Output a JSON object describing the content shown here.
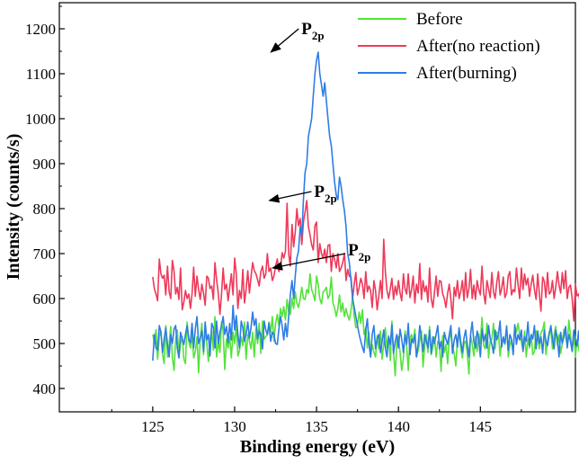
{
  "chart_data": {
    "type": "line",
    "title": "",
    "xlabel": "Binding energy (eV)",
    "ylabel": "Intensity (counts/s)",
    "xlim": [
      119.3,
      150.8
    ],
    "ylim": [
      348,
      1258
    ],
    "x_ticks": [
      125,
      130,
      135,
      140,
      145
    ],
    "y_ticks": [
      400,
      500,
      600,
      700,
      800,
      900,
      1000,
      1100,
      1200
    ],
    "x_range": [
      125,
      145
    ],
    "x_step": 0.1,
    "legend_position": "top-right",
    "series": [
      {
        "name": "Before",
        "color": "#55e23c",
        "values": [
          520,
          502,
          531,
          465,
          516,
          528,
          475,
          455,
          540,
          470,
          498,
          538,
          470,
          440,
          510,
          530,
          468,
          500,
          515,
          465,
          455,
          548,
          505,
          490,
          520,
          468,
          482,
          515,
          435,
          508,
          545,
          475,
          532,
          500,
          460,
          510,
          528,
          485,
          560,
          470,
          505,
          480,
          548,
          528,
          442,
          510,
          490,
          515,
          468,
          525,
          500,
          540,
          472,
          485,
          515,
          495,
          548,
          465,
          520,
          505,
          488,
          525,
          470,
          535,
          500,
          545,
          478,
          550,
          510,
          515,
          520,
          548,
          525,
          560,
          505,
          545,
          565,
          540,
          578,
          560,
          582,
          552,
          598,
          570,
          565,
          600,
          578,
          615,
          590,
          580,
          600,
          625,
          600,
          598,
          620,
          612,
          655,
          620,
          610,
          595,
          650,
          632,
          600,
          588,
          615,
          618,
          625,
          600,
          608,
          648,
          590,
          580,
          560,
          578,
          608,
          570,
          590,
          560,
          578,
          562,
          552,
          575,
          605,
          560,
          535,
          540,
          570,
          545,
          575,
          520,
          535,
          490,
          525,
          470,
          498,
          480,
          470,
          518,
          488,
          528,
          465,
          500,
          535,
          490,
          518,
          462,
          550,
          480,
          428,
          505,
          515,
          480,
          440,
          468,
          528,
          495,
          440,
          512,
          520,
          500,
          532,
          470,
          485,
          505,
          528,
          448,
          495,
          520,
          480,
          538,
          475,
          492,
          515,
          470,
          505,
          498,
          438,
          518,
          480,
          498,
          455,
          510,
          525,
          492,
          478,
          450,
          510,
          528,
          490,
          468,
          500,
          505,
          478,
          432,
          518,
          500,
          472,
          515,
          482,
          522,
          500,
          558,
          495,
          488,
          545,
          468,
          505,
          510,
          545,
          488,
          525,
          525,
          472,
          505,
          510,
          498,
          540,
          470,
          495,
          508,
          480,
          540,
          525,
          545,
          520,
          505,
          485,
          528,
          470,
          510,
          490,
          520,
          475,
          482,
          528,
          512,
          488,
          525,
          530,
          548,
          475,
          505,
          525,
          530,
          488,
          520,
          538,
          495,
          520,
          478,
          500,
          532,
          515,
          495,
          552,
          518,
          485,
          525,
          470,
          508,
          488,
          475,
          525,
          500,
          455,
          498,
          510,
          490,
          505,
          495,
          500,
          550,
          488,
          505,
          520,
          470,
          530,
          512,
          480,
          498,
          535,
          500,
          508,
          518,
          495,
          492,
          480,
          545,
          498,
          488
        ]
      },
      {
        "name": "After(no reaction)",
        "color": "#ee3a5a",
        "values": [
          648,
          622,
          610,
          595,
          688,
          655,
          645,
          652,
          608,
          672,
          615,
          600,
          685,
          660,
          610,
          625,
          598,
          668,
          575,
          592,
          618,
          600,
          610,
          578,
          610,
          670,
          605,
          650,
          620,
          598,
          632,
          612,
          585,
          650,
          645,
          622,
          628,
          598,
          680,
          642,
          612,
          565,
          610,
          668,
          620,
          632,
          595,
          625,
          655,
          608,
          690,
          655,
          578,
          618,
          600,
          665,
          590,
          620,
          662,
          612,
          648,
          680,
          662,
          655,
          642,
          628,
          660,
          672,
          645,
          655,
          700,
          660,
          668,
          640,
          650,
          672,
          688,
          660,
          668,
          702,
          690,
          705,
          812,
          700,
          672,
          765,
          715,
          748,
          800,
          762,
          778,
          720,
          770,
          792,
          818,
          760,
          742,
          720,
          708,
          762,
          770,
          680,
          722,
          700,
          690,
          710,
          680,
          718,
          720,
          660,
          700,
          688,
          668,
          700,
          660,
          668,
          680,
          700,
          640,
          665,
          650,
          648,
          600,
          632,
          658,
          608,
          625,
          645,
          632,
          600,
          660,
          615,
          628,
          618,
          580,
          640,
          618,
          575,
          605,
          640,
          600,
          732,
          660,
          618,
          600,
          622,
          645,
          598,
          628,
          608,
          640,
          612,
          595,
          655,
          622,
          610,
          655,
          602,
          620,
          650,
          590,
          632,
          612,
          678,
          598,
          640,
          615,
          628,
          592,
          668,
          600,
          580,
          615,
          650,
          605,
          640,
          638,
          610,
          600,
          580,
          612,
          632,
          598,
          555,
          625,
          605,
          640,
          600,
          615,
          640,
          595,
          658,
          602,
          622,
          665,
          600,
          630,
          598,
          640,
          620,
          608,
          672,
          612,
          588,
          640,
          622,
          602,
          658,
          615,
          600,
          635,
          660,
          608,
          622,
          648,
          602,
          612,
          650,
          660,
          608,
          620,
          615,
          668,
          632,
          600,
          668,
          620,
          655,
          630,
          645,
          605,
          632,
          652,
          620,
          598,
          655,
          610,
          572,
          648,
          638,
          602,
          658,
          610,
          615,
          640,
          600,
          625,
          660,
          630,
          612,
          658,
          622,
          662,
          600,
          625,
          630,
          600,
          550,
          632,
          606,
          610,
          590,
          655,
          600,
          592,
          625,
          640,
          602,
          612,
          580,
          550,
          628,
          640,
          602,
          620,
          600,
          625,
          590,
          598
        ]
      },
      {
        "name": "After(burning)",
        "color": "#2e7de4",
        "values": [
          462,
          520,
          490,
          485,
          540,
          525,
          480,
          510,
          535,
          498,
          470,
          520,
          500,
          532,
          540,
          490,
          468,
          525,
          510,
          498,
          520,
          540,
          510,
          502,
          545,
          490,
          532,
          560,
          500,
          512,
          528,
          482,
          548,
          508,
          520,
          472,
          545,
          535,
          490,
          550,
          500,
          525,
          540,
          560,
          520,
          538,
          502,
          545,
          508,
          585,
          530,
          562,
          520,
          490,
          550,
          535,
          505,
          520,
          548,
          512,
          535,
          570,
          540,
          555,
          510,
          528,
          520,
          488,
          550,
          530,
          520,
          545,
          505,
          525,
          520,
          500,
          498,
          532,
          560,
          540,
          508,
          545,
          515,
          560,
          608,
          640,
          600,
          650,
          690,
          705,
          760,
          740,
          820,
          880,
          900,
          960,
          980,
          1000,
          1050,
          1100,
          1130,
          1148,
          1100,
          1075,
          1050,
          1080,
          1040,
          1000,
          960,
          940,
          900,
          860,
          830,
          820,
          870,
          850,
          820,
          795,
          760,
          700,
          680,
          640,
          600,
          580,
          560,
          540,
          520,
          505,
          492,
          480,
          530,
          555,
          500,
          470,
          520,
          540,
          488,
          510,
          520,
          480,
          505,
          530,
          490,
          470,
          515,
          498,
          542,
          478,
          505,
          520,
          490,
          532,
          510,
          480,
          520,
          498,
          545,
          475,
          510,
          502,
          520,
          470,
          498,
          540,
          512,
          482,
          520,
          505,
          490,
          530,
          478,
          515,
          500,
          520,
          540,
          488,
          505,
          470,
          525,
          510,
          498,
          520,
          540,
          478,
          508,
          520,
          492,
          535,
          505,
          480,
          512,
          530,
          498,
          470,
          520,
          548,
          505,
          490,
          528,
          510,
          470,
          532,
          505,
          520,
          490,
          540,
          512,
          498,
          478,
          530,
          508,
          520,
          550,
          492,
          515,
          500,
          538,
          485,
          520,
          510,
          475,
          542,
          498,
          520,
          508,
          530,
          482,
          515,
          505,
          548,
          495,
          520,
          510,
          540,
          488,
          528,
          500,
          515,
          478,
          530,
          505,
          495,
          520,
          540,
          510,
          488,
          530,
          512,
          470,
          525,
          500,
          515,
          538,
          490,
          520,
          505,
          482,
          530,
          510,
          495,
          528,
          470,
          515,
          540,
          500,
          522,
          488,
          510,
          545,
          498,
          520,
          470,
          508,
          532,
          505,
          548
        ]
      }
    ],
    "annotations": [
      {
        "text": "P",
        "sub": "2p",
        "x": 132.1,
        "y": 1148
      },
      {
        "text": "P",
        "sub": "2p",
        "x": 132.0,
        "y": 818
      },
      {
        "text": "P",
        "sub": "2p",
        "x": 132.2,
        "y": 668
      }
    ]
  }
}
